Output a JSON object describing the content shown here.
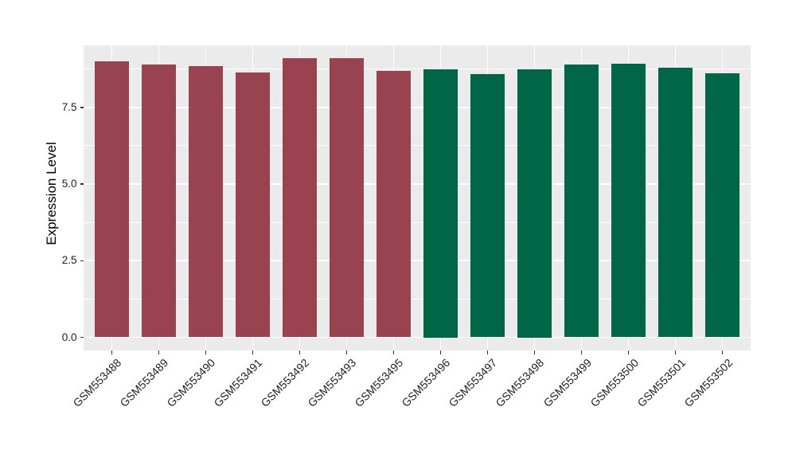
{
  "chart_data": {
    "type": "bar",
    "title": "",
    "xlabel": "",
    "ylabel": "Expression Level",
    "categories": [
      "GSM553488",
      "GSM553489",
      "GSM553490",
      "GSM553491",
      "GSM553492",
      "GSM553493",
      "GSM553495",
      "GSM553496",
      "GSM553497",
      "GSM553498",
      "GSM553499",
      "GSM553500",
      "GSM553501",
      "GSM553502"
    ],
    "values": [
      9.01,
      8.9,
      8.85,
      8.64,
      9.11,
      9.11,
      8.68,
      8.75,
      8.59,
      8.75,
      8.9,
      8.91,
      8.8,
      8.62
    ],
    "colors": [
      "#9A4350",
      "#9A4350",
      "#9A4350",
      "#9A4350",
      "#9A4350",
      "#9A4350",
      "#9A4350",
      "#006647",
      "#006647",
      "#006647",
      "#006647",
      "#006647",
      "#006647",
      "#006647"
    ],
    "palette": {
      "maroon": "#9A4350",
      "green": "#006647"
    },
    "yticks": [
      {
        "v": 0.0,
        "label": "0.0"
      },
      {
        "v": 2.5,
        "label": "2.5"
      },
      {
        "v": 5.0,
        "label": "5.0"
      },
      {
        "v": 7.5,
        "label": "7.5"
      }
    ],
    "minor_yticks": [
      1.25,
      3.75,
      6.25,
      8.75
    ],
    "ylim": [
      0,
      9.52
    ],
    "grid": "on",
    "legend": "none",
    "panel_bg": "#EBEBEB",
    "grid_color": "#FFFFFF"
  }
}
